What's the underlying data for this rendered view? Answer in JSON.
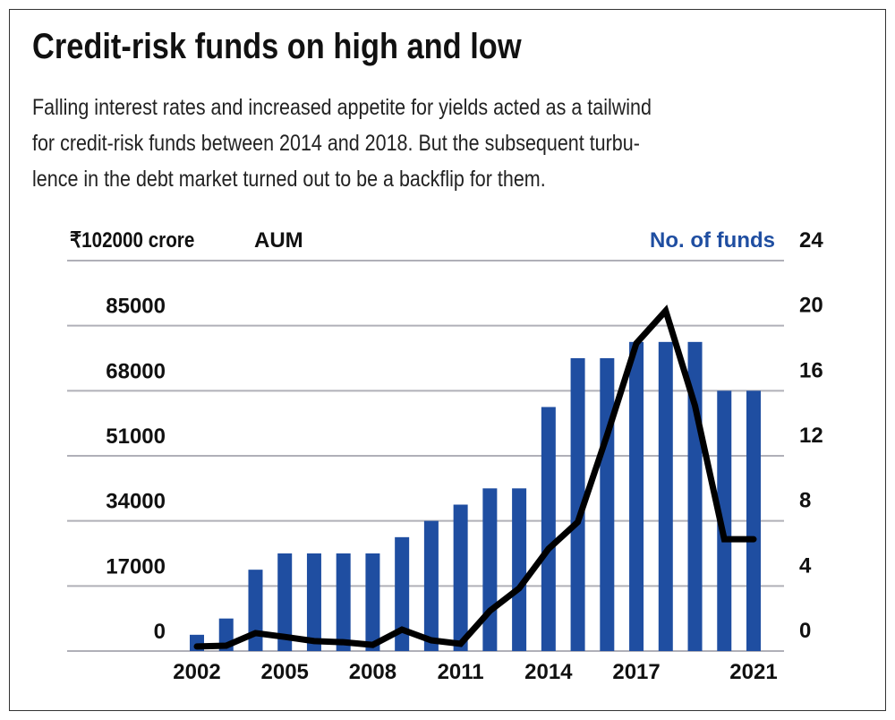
{
  "title": "Credit-risk funds on high and low",
  "subtitle_lines": [
    "Falling interest rates and increased appetite for yields acted as a tailwind",
    "for credit-risk funds between 2014 and 2018. But the subsequent turbu-",
    "lence in the debt market turned out to be a backflip for them."
  ],
  "chart_data": {
    "type": "bar+line",
    "categories": [
      2002,
      2003,
      2004,
      2005,
      2006,
      2007,
      2008,
      2009,
      2010,
      2011,
      2012,
      2013,
      2014,
      2015,
      2016,
      2017,
      2018,
      2019,
      2020,
      2021
    ],
    "x_tick_labels": [
      "2002",
      "2005",
      "2008",
      "2011",
      "2014",
      "2017",
      "2021"
    ],
    "left_axis": {
      "label_unit": "₹102000 crore",
      "label": "AUM",
      "ylim": [
        0,
        102000
      ],
      "ticks": [
        "0",
        "17000",
        "34000",
        "51000",
        "68000",
        "85000"
      ]
    },
    "right_axis": {
      "label": "No. of funds",
      "ylim": [
        0,
        24
      ],
      "ticks": [
        "0",
        "4",
        "8",
        "12",
        "16",
        "20",
        "24"
      ]
    },
    "series": [
      {
        "name": "No. of funds",
        "type": "bar",
        "axis": "right",
        "color": "#1f4ea1",
        "values": [
          1,
          2,
          5,
          6,
          6,
          6,
          6,
          7,
          8,
          9,
          10,
          10,
          15,
          18,
          18,
          19,
          19,
          19,
          16,
          16
        ]
      },
      {
        "name": "AUM",
        "type": "line",
        "axis": "left",
        "color": "#000000",
        "values": [
          1200,
          1400,
          4700,
          3700,
          2600,
          2300,
          1600,
          5600,
          2800,
          1900,
          10500,
          16400,
          26700,
          33700,
          56400,
          80400,
          88900,
          64100,
          29200,
          29200
        ]
      }
    ],
    "grid": true,
    "gridline_color": "#b0b0b8"
  }
}
